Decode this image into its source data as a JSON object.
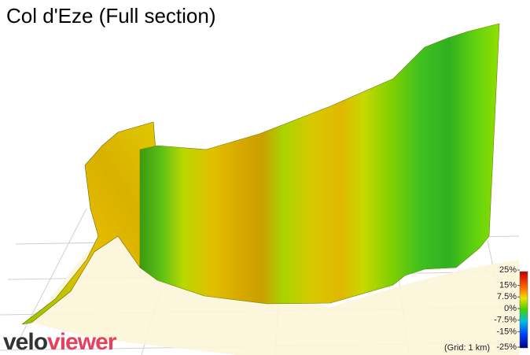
{
  "title": "Col d'Eze (Full section)",
  "color_scale": {
    "ticks": [
      {
        "value": 25,
        "label": "25%"
      },
      {
        "value": 15,
        "label": "15%"
      },
      {
        "value": 7.5,
        "label": "7.5%"
      },
      {
        "value": 0,
        "label": "0%"
      },
      {
        "value": -7.5,
        "label": "-7.5%"
      },
      {
        "value": -15,
        "label": "-15%"
      },
      {
        "value": -25,
        "label": "-25%"
      }
    ],
    "lim": [
      -25,
      25
    ]
  },
  "grid_note": "(Grid: 1 km)",
  "logo": {
    "part1": "velo",
    "part2": "viewer"
  }
}
